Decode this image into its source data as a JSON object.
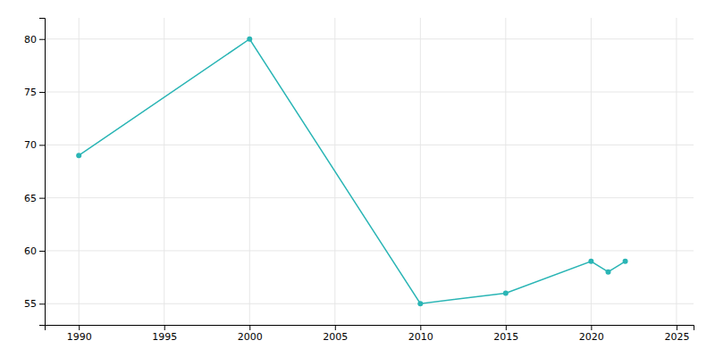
{
  "chart_data": {
    "type": "line",
    "x": [
      1990,
      2000,
      2010,
      2015,
      2020,
      2021,
      2022
    ],
    "values": [
      69,
      80,
      55,
      56,
      59,
      58,
      59
    ],
    "color": "#2ab5b5",
    "marker": "circle",
    "xlim": [
      1988,
      2026
    ],
    "ylim": [
      53,
      82
    ],
    "xticks": [
      1990,
      1995,
      2000,
      2005,
      2010,
      2015,
      2020,
      2025
    ],
    "yticks": [
      55,
      60,
      65,
      70,
      75,
      80
    ],
    "grid": true
  }
}
